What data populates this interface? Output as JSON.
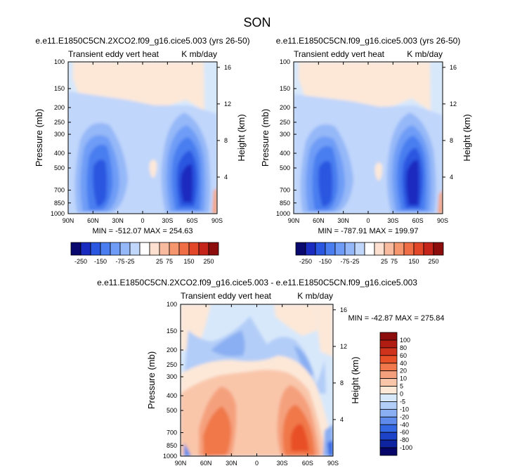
{
  "figure": {
    "title": "SON"
  },
  "chart_data": [
    {
      "type": "heatmap",
      "id": "panel-a",
      "title": "e.e11.E1850C5CN.2XCO2.f09_g16.cice5.003 (yrs 26-50)",
      "left_header": "Transient eddy vert heat",
      "right_header": "K mb/day",
      "ylabel": "Pressure (mb)",
      "y2label": "Height (km)",
      "x_ticks": [
        "90N",
        "60N",
        "30N",
        "0",
        "30S",
        "60S",
        "90S"
      ],
      "x_values": [
        90,
        60,
        30,
        0,
        -30,
        -60,
        -90
      ],
      "y_ticks": [
        "100",
        "150",
        "200",
        "250",
        "300",
        "400",
        "500",
        "700",
        "850",
        "1000"
      ],
      "y_values": [
        100,
        150,
        200,
        250,
        300,
        400,
        500,
        700,
        850,
        1000
      ],
      "y2_ticks": [
        "16",
        "12",
        "8",
        "4"
      ],
      "y2_values": [
        16,
        12,
        8,
        4
      ],
      "stats": "MIN = -512.07   MAX = 254.63",
      "min": -512.07,
      "max": 254.63
    },
    {
      "type": "heatmap",
      "id": "panel-b",
      "title": "e.e11.E1850C5CN.f09_g16.cice5.003 (yrs 26-50)",
      "left_header": "Transient eddy vert heat",
      "right_header": "K mb/day",
      "ylabel": "Pressure (mb)",
      "y2label": "Height (km)",
      "x_ticks": [
        "90N",
        "60N",
        "30N",
        "0",
        "30S",
        "60S",
        "90S"
      ],
      "x_values": [
        90,
        60,
        30,
        0,
        -30,
        -60,
        -90
      ],
      "y_ticks": [
        "100",
        "150",
        "200",
        "250",
        "300",
        "400",
        "500",
        "700",
        "850",
        "1000"
      ],
      "y_values": [
        100,
        150,
        200,
        250,
        300,
        400,
        500,
        700,
        850,
        1000
      ],
      "y2_ticks": [
        "16",
        "12",
        "8",
        "4"
      ],
      "y2_values": [
        16,
        12,
        8,
        4
      ],
      "stats": "MIN = -787.91   MAX = 199.97",
      "min": -787.91,
      "max": 199.97
    },
    {
      "type": "heatmap",
      "id": "panel-diff",
      "title": "e.e11.E1850C5CN.2XCO2.f09_g16.cice5.003 - e.e11.E1850C5CN.f09_g16.cice5.003",
      "left_header": "Transient eddy vert heat",
      "right_header": "K mb/day",
      "ylabel": "Pressure (mb)",
      "y2label": "Height (km)",
      "x_ticks": [
        "90N",
        "60N",
        "30N",
        "0",
        "30S",
        "60S",
        "90S"
      ],
      "x_values": [
        90,
        60,
        30,
        0,
        -30,
        -60,
        -90
      ],
      "y_ticks": [
        "100",
        "150",
        "200",
        "250",
        "300",
        "400",
        "500",
        "700",
        "850",
        "1000"
      ],
      "y_values": [
        100,
        150,
        200,
        250,
        300,
        400,
        500,
        700,
        850,
        1000
      ],
      "y2_ticks": [
        "16",
        "12",
        "8",
        "4"
      ],
      "y2_values": [
        16,
        12,
        8,
        4
      ],
      "stats": "MIN = -42.87   MAX = 275.84",
      "min": -42.87,
      "max": 275.84
    }
  ],
  "colorbars": {
    "shared": {
      "colors": [
        "#08086e",
        "#1a2cc0",
        "#2a56e0",
        "#4a7ef0",
        "#6e9cf6",
        "#95b8f8",
        "#c0d6fb",
        "#ffffff",
        "#fde0cf",
        "#f9bb9f",
        "#f5966f",
        "#ef6e45",
        "#e2472a",
        "#c4241a",
        "#8c0d0b"
      ],
      "labels": [
        "-250",
        "-150",
        "-75",
        "-25",
        "25",
        "75",
        "150",
        "250"
      ]
    },
    "difference": {
      "colors": [
        "#8c0d0b",
        "#b01b12",
        "#d0331c",
        "#e85027",
        "#f0784a",
        "#f5a07d",
        "#f9c6aa",
        "#fde8d8",
        "#d8e8fb",
        "#b2cdf8",
        "#8aaff2",
        "#5f8cec",
        "#3468e2",
        "#1d43c8",
        "#0e23a0",
        "#06066a"
      ],
      "labels": [
        "100",
        "80",
        "60",
        "40",
        "20",
        "10",
        "5",
        "0",
        "-5",
        "-10",
        "-20",
        "-40",
        "-60",
        "-80",
        "-100"
      ]
    }
  }
}
